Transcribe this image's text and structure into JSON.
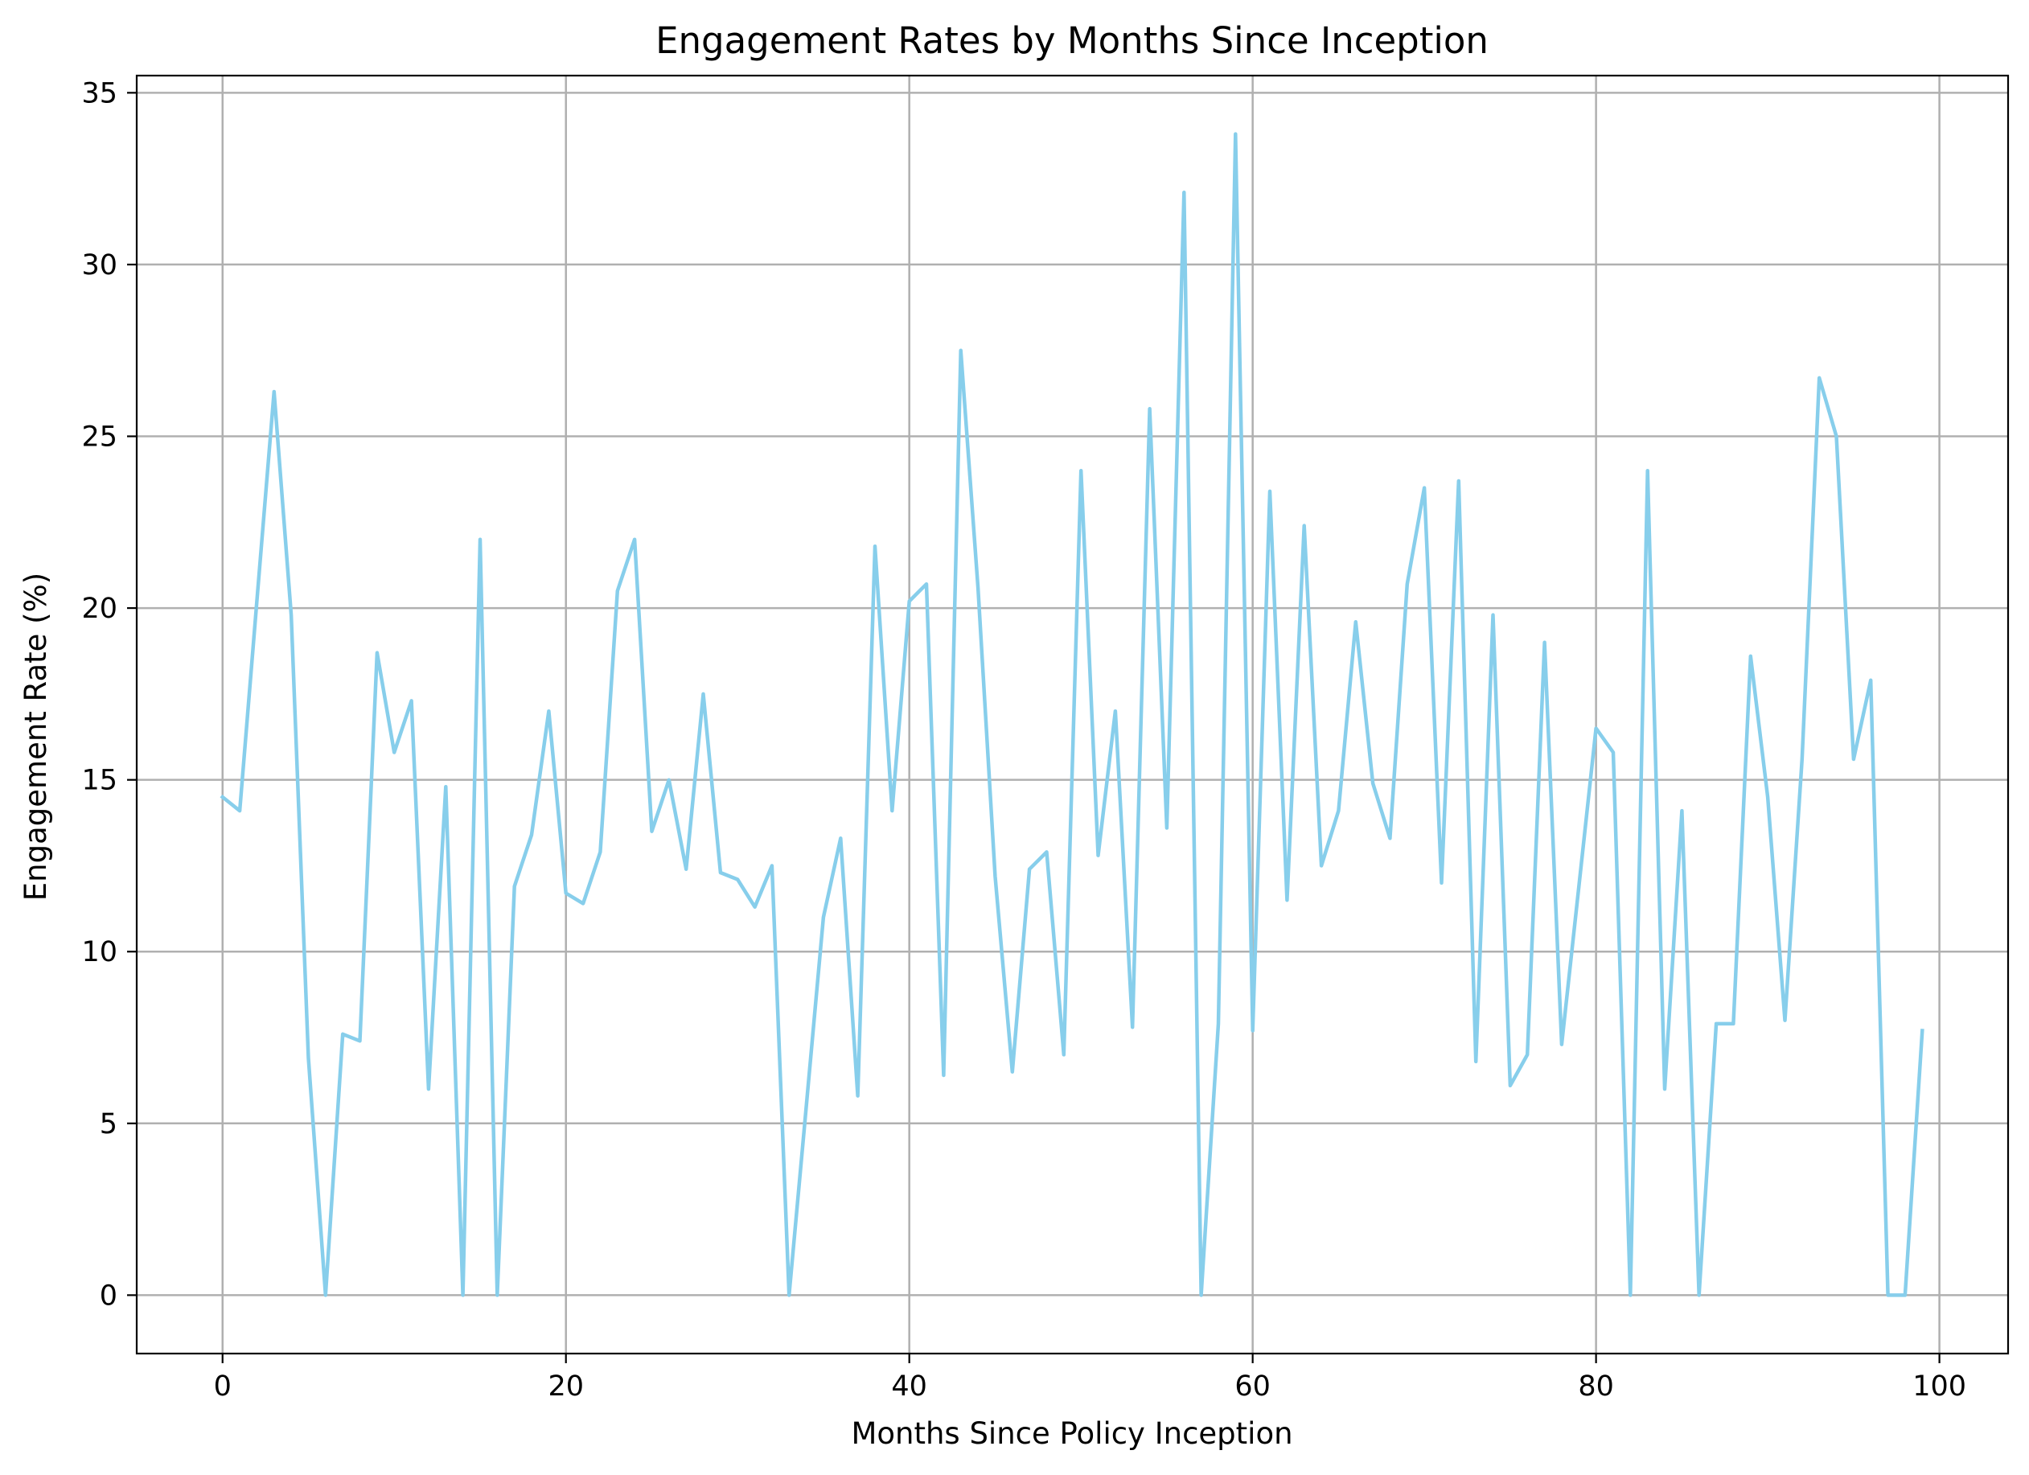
{
  "chart_data": {
    "type": "line",
    "title": "Engagement Rates by Months Since Inception",
    "xlabel": "Months Since Policy Inception",
    "ylabel": "Engagement Rate (%)",
    "xlim": [
      -5,
      104
    ],
    "ylim": [
      -1.7,
      35.5
    ],
    "xticks": [
      0,
      20,
      40,
      60,
      80,
      100
    ],
    "xtick_labels": [
      "0",
      "20",
      "40",
      "60",
      "80",
      "100"
    ],
    "yticks": [
      0,
      5,
      10,
      15,
      20,
      25,
      30,
      35
    ],
    "ytick_labels": [
      "0",
      "5",
      "10",
      "15",
      "20",
      "25",
      "30",
      "35"
    ],
    "grid": true,
    "legend": "none",
    "colors": {
      "line": "#87ceeb",
      "grid": "#b0b0b0",
      "axes": "#000000"
    },
    "series": [
      {
        "x": [
          0,
          1,
          2,
          3,
          4,
          5,
          6,
          7,
          8,
          9,
          10,
          11,
          12,
          13,
          14,
          15,
          16,
          17,
          18,
          19,
          20,
          21,
          22,
          23,
          24,
          25,
          26,
          27,
          28,
          29,
          30,
          31,
          32,
          33,
          34,
          35,
          36,
          37,
          38,
          39,
          40,
          41,
          42,
          43,
          44,
          45,
          46,
          47,
          48,
          49,
          50,
          51,
          52,
          53,
          54,
          55,
          56,
          57,
          58,
          59,
          60,
          61,
          62,
          63,
          64,
          65,
          66,
          67,
          68,
          69,
          70,
          71,
          72,
          73,
          74,
          75,
          76,
          77,
          78,
          79,
          80,
          81,
          82,
          83,
          84,
          85,
          86,
          87,
          88,
          89,
          90,
          91,
          92,
          93,
          94,
          95,
          96,
          97,
          98,
          99
        ],
        "values": [
          14.5,
          14.1,
          20.2,
          26.3,
          19.8,
          6.9,
          0.0,
          7.6,
          7.4,
          18.7,
          15.8,
          17.3,
          6.0,
          14.8,
          0.0,
          22.0,
          0.0,
          11.9,
          13.4,
          17.0,
          11.7,
          11.4,
          12.9,
          20.5,
          22.0,
          13.5,
          15.0,
          12.4,
          17.5,
          12.3,
          12.1,
          11.3,
          12.5,
          0.0,
          5.5,
          11.0,
          13.3,
          5.8,
          21.8,
          14.1,
          20.2,
          20.7,
          6.4,
          27.5,
          20.6,
          12.2,
          6.5,
          12.4,
          12.9,
          7.0,
          24.0,
          12.8,
          17.0,
          7.8,
          25.8,
          13.6,
          32.1,
          0.0,
          7.9,
          33.8,
          7.7,
          23.4,
          11.5,
          22.4,
          12.5,
          14.1,
          19.6,
          14.9,
          13.3,
          20.7,
          23.5,
          12.0,
          23.7,
          6.8,
          19.8,
          6.1,
          7.0,
          19.0,
          7.3,
          11.9,
          16.5,
          15.8,
          0.0,
          24.0,
          6.0,
          14.1,
          0.0,
          7.9,
          7.9,
          18.6,
          14.5,
          8.0,
          15.6,
          26.7,
          25.0,
          15.6,
          17.9,
          0.0,
          0.0,
          7.7
        ]
      }
    ]
  }
}
